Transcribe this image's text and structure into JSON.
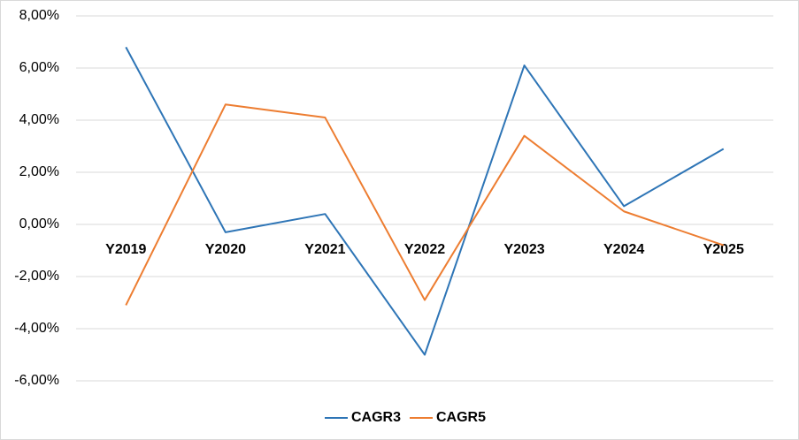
{
  "chart_data": {
    "type": "line",
    "categories": [
      "Y2019",
      "Y2020",
      "Y2021",
      "Y2022",
      "Y2023",
      "Y2024",
      "Y2025"
    ],
    "series": [
      {
        "name": "CAGR3",
        "color": "#2E75B6",
        "values": [
          6.8,
          -0.3,
          0.4,
          -5.0,
          6.1,
          0.7,
          2.9
        ]
      },
      {
        "name": "CAGR5",
        "color": "#ED7D31",
        "values": [
          -3.1,
          4.6,
          4.1,
          -2.9,
          3.4,
          0.5,
          -0.8
        ]
      }
    ],
    "y_ticks": [
      "8,00%",
      "6,00%",
      "4,00%",
      "2,00%",
      "0,00%",
      "-2,00%",
      "-4,00%",
      "-6,00%"
    ],
    "ylim": [
      -6,
      8
    ],
    "grid": true,
    "legend_position": "bottom",
    "gridline_color": "#d9d9d9",
    "axis_color": "#d9d9d9"
  }
}
